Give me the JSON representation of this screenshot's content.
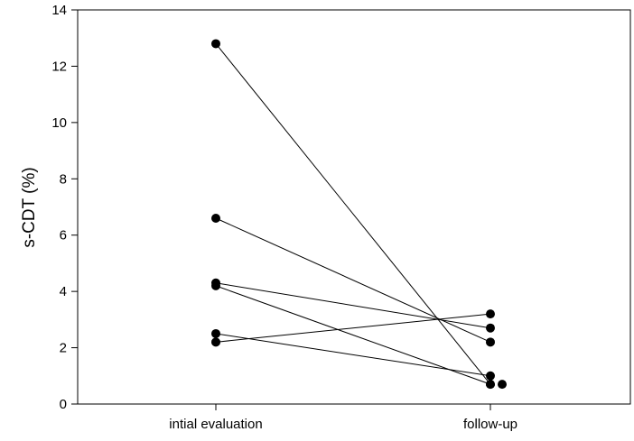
{
  "chart_data": {
    "type": "line",
    "title": "",
    "xlabel": "",
    "ylabel": "s-CDT (%)",
    "categories": [
      "intial evaluation",
      "follow-up"
    ],
    "ylim": [
      0,
      14
    ],
    "yticks": [
      0,
      2,
      4,
      6,
      8,
      10,
      12,
      14
    ],
    "grid": false,
    "series": [
      {
        "values": [
          12.8,
          0.7
        ]
      },
      {
        "values": [
          6.6,
          2.2
        ]
      },
      {
        "values": [
          4.3,
          2.7
        ]
      },
      {
        "values": [
          4.2,
          0.7
        ]
      },
      {
        "values": [
          2.5,
          1.0
        ]
      },
      {
        "values": [
          2.2,
          3.2
        ]
      }
    ],
    "extra_points": [
      {
        "category": "follow-up",
        "value": 0.7
      }
    ],
    "colors": {
      "line": "#000000",
      "marker": "#000000",
      "frame": "#000000"
    }
  }
}
